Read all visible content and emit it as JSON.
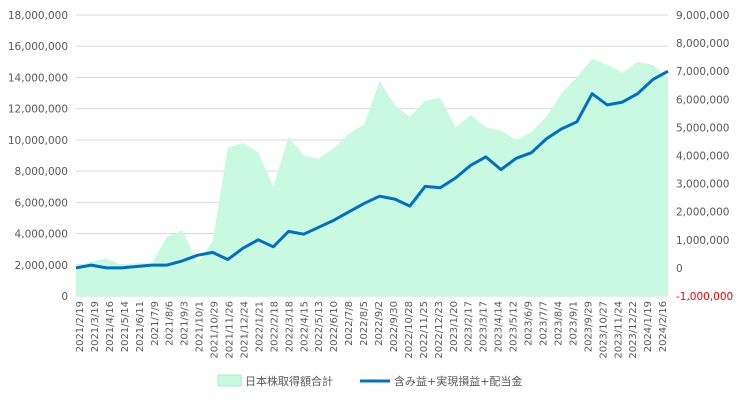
{
  "chart_data": {
    "type": "area+line",
    "title": "",
    "xlabel": "",
    "ylabel": "",
    "grid": true,
    "legend_position": "bottom",
    "left_axis": {
      "min": 0,
      "max": 18000000,
      "ticks": [
        0,
        2000000,
        4000000,
        6000000,
        8000000,
        10000000,
        12000000,
        14000000,
        16000000,
        18000000
      ],
      "tick_labels": [
        "0",
        "2,000,000",
        "4,000,000",
        "6,000,000",
        "8,000,000",
        "10,000,000",
        "12,000,000",
        "14,000,000",
        "16,000,000",
        "18,000,000"
      ]
    },
    "right_axis": {
      "min": -1000000,
      "max": 9000000,
      "ticks": [
        -1000000,
        0,
        1000000,
        2000000,
        3000000,
        4000000,
        5000000,
        6000000,
        7000000,
        8000000,
        9000000
      ],
      "tick_labels": [
        "-1,000,000",
        "0",
        "1,000,000",
        "2,000,000",
        "3,000,000",
        "4,000,000",
        "5,000,000",
        "6,000,000",
        "7,000,000",
        "8,000,000",
        "9,000,000"
      ],
      "negative_color": "#ff0000"
    },
    "x_tick_labels": [
      "2021/2/19",
      "2021/3/19",
      "2021/4/16",
      "2021/5/14",
      "2021/6/11",
      "2021/7/9",
      "2021/8/6",
      "2021/9/3",
      "2021/10/1",
      "2021/10/29",
      "2021/11/26",
      "2021/12/24",
      "2022/1/21",
      "2022/2/18",
      "2022/3/18",
      "2022/4/15",
      "2022/5/13",
      "2022/6/10",
      "2022/7/8",
      "2022/8/5",
      "2022/9/2",
      "2022/9/30",
      "2022/10/28",
      "2022/11/25",
      "2022/12/23",
      "2023/1/20",
      "2023/2/17",
      "2023/3/17",
      "2023/4/14",
      "2023/5/12",
      "2023/6/9",
      "2023/7/7",
      "2023/8/4",
      "2023/9/1",
      "2023/9/29",
      "2023/10/27",
      "2023/11/24",
      "2023/12/22",
      "2024/1/19",
      "2024/2/16"
    ],
    "series": [
      {
        "name": "日本株取得額合計",
        "kind": "area",
        "axis": "left",
        "color": "#c9f9e0",
        "values": [
          1900000,
          2200000,
          2400000,
          2000000,
          2100000,
          2100000,
          3800000,
          4200000,
          2100000,
          3500000,
          9500000,
          9800000,
          9200000,
          7000000,
          10200000,
          9000000,
          8800000,
          9500000,
          10400000,
          11000000,
          13800000,
          12200000,
          11500000,
          12500000,
          12700000,
          10800000,
          11600000,
          10800000,
          10600000,
          10000000,
          10500000,
          11500000,
          13000000,
          14000000,
          15200000,
          14800000,
          14300000,
          15000000,
          14800000,
          14000000
        ]
      },
      {
        "name": "含み益+実現損益+配当金",
        "kind": "line",
        "axis": "right",
        "color": "#0070c0",
        "values": [
          0,
          100000,
          0,
          0,
          50000,
          100000,
          100000,
          250000,
          450000,
          550000,
          300000,
          700000,
          1000000,
          750000,
          1300000,
          1200000,
          1450000,
          1700000,
          2000000,
          2300000,
          2550000,
          2450000,
          2200000,
          2900000,
          2850000,
          3200000,
          3650000,
          3950000,
          3500000,
          3900000,
          4100000,
          4600000,
          4950000,
          5200000,
          6200000,
          5800000,
          5900000,
          6200000,
          6700000,
          7000000
        ]
      }
    ]
  }
}
